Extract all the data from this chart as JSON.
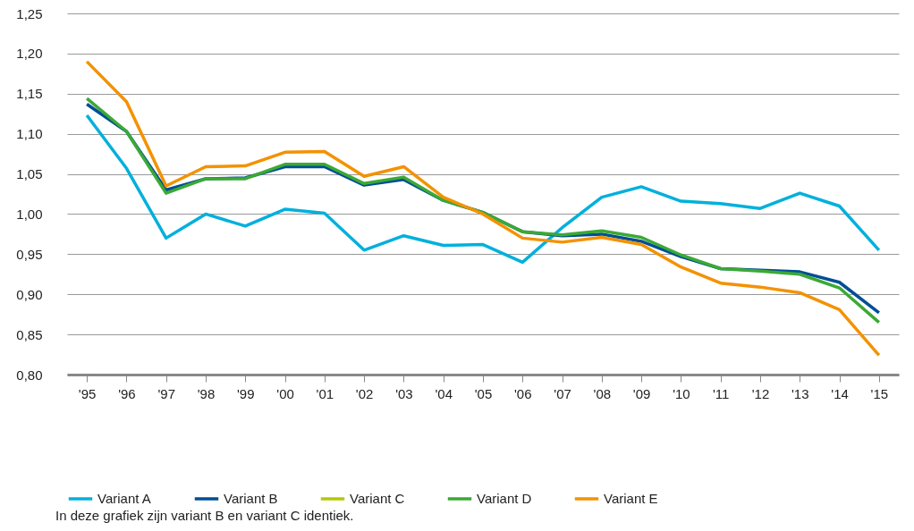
{
  "chart_data": {
    "type": "line",
    "categories": [
      "'95",
      "'96",
      "'97",
      "'98",
      "'99",
      "'00",
      "'01",
      "'02",
      "'03",
      "'04",
      "'05",
      "'06",
      "'07",
      "'08",
      "'09",
      "'10",
      "'11",
      "'12",
      "'13",
      "'14",
      "'15"
    ],
    "series": [
      {
        "name": "Variant A",
        "color": "#00b0dc",
        "values": [
          1.123,
          1.057,
          0.97,
          1.0,
          0.985,
          1.006,
          1.001,
          0.955,
          0.973,
          0.961,
          0.962,
          0.94,
          0.983,
          1.021,
          1.034,
          1.016,
          1.013,
          1.007,
          1.026,
          1.01,
          0.955
        ]
      },
      {
        "name": "Variant B",
        "color": "#004e95",
        "values": [
          1.137,
          1.103,
          1.03,
          1.044,
          1.045,
          1.059,
          1.059,
          1.036,
          1.043,
          1.017,
          1.002,
          0.978,
          0.973,
          0.975,
          0.966,
          0.947,
          0.932,
          0.93,
          0.928,
          0.915,
          0.877
        ]
      },
      {
        "name": "Variant C",
        "color": "#b5c800",
        "values": [
          null,
          null,
          null,
          null,
          null,
          null,
          null,
          null,
          null,
          null,
          null,
          null,
          null,
          null,
          null,
          null,
          null,
          null,
          null,
          null,
          null
        ]
      },
      {
        "name": "Variant D",
        "color": "#3ba935",
        "values": [
          1.144,
          1.103,
          1.026,
          1.044,
          1.044,
          1.062,
          1.062,
          1.038,
          1.046,
          1.017,
          1.002,
          0.978,
          0.974,
          0.979,
          0.971,
          0.949,
          0.932,
          0.929,
          0.925,
          0.908,
          0.865
        ]
      },
      {
        "name": "Variant E",
        "color": "#f39200",
        "values": [
          1.19,
          1.14,
          1.035,
          1.059,
          1.06,
          1.077,
          1.078,
          1.047,
          1.059,
          1.021,
          1.0,
          0.97,
          0.965,
          0.971,
          0.962,
          0.934,
          0.914,
          0.909,
          0.902,
          0.881,
          0.824
        ]
      }
    ],
    "ylim": [
      0.8,
      1.25
    ],
    "yticks": [
      {
        "value": 0.8,
        "label": "0,80"
      },
      {
        "value": 0.85,
        "label": "0,85"
      },
      {
        "value": 0.9,
        "label": "0,90"
      },
      {
        "value": 0.95,
        "label": "0,95"
      },
      {
        "value": 1.0,
        "label": "1,00"
      },
      {
        "value": 1.05,
        "label": "1,05"
      },
      {
        "value": 1.1,
        "label": "1,10"
      },
      {
        "value": 1.15,
        "label": "1,15"
      },
      {
        "value": 1.2,
        "label": "1,20"
      },
      {
        "value": 1.25,
        "label": "1,25"
      }
    ],
    "grid": "y",
    "legend": "bottom",
    "line_style": "solid",
    "marker": "none",
    "annotations": [
      "In deze grafiek zijn variant B en variant C identiek."
    ]
  }
}
